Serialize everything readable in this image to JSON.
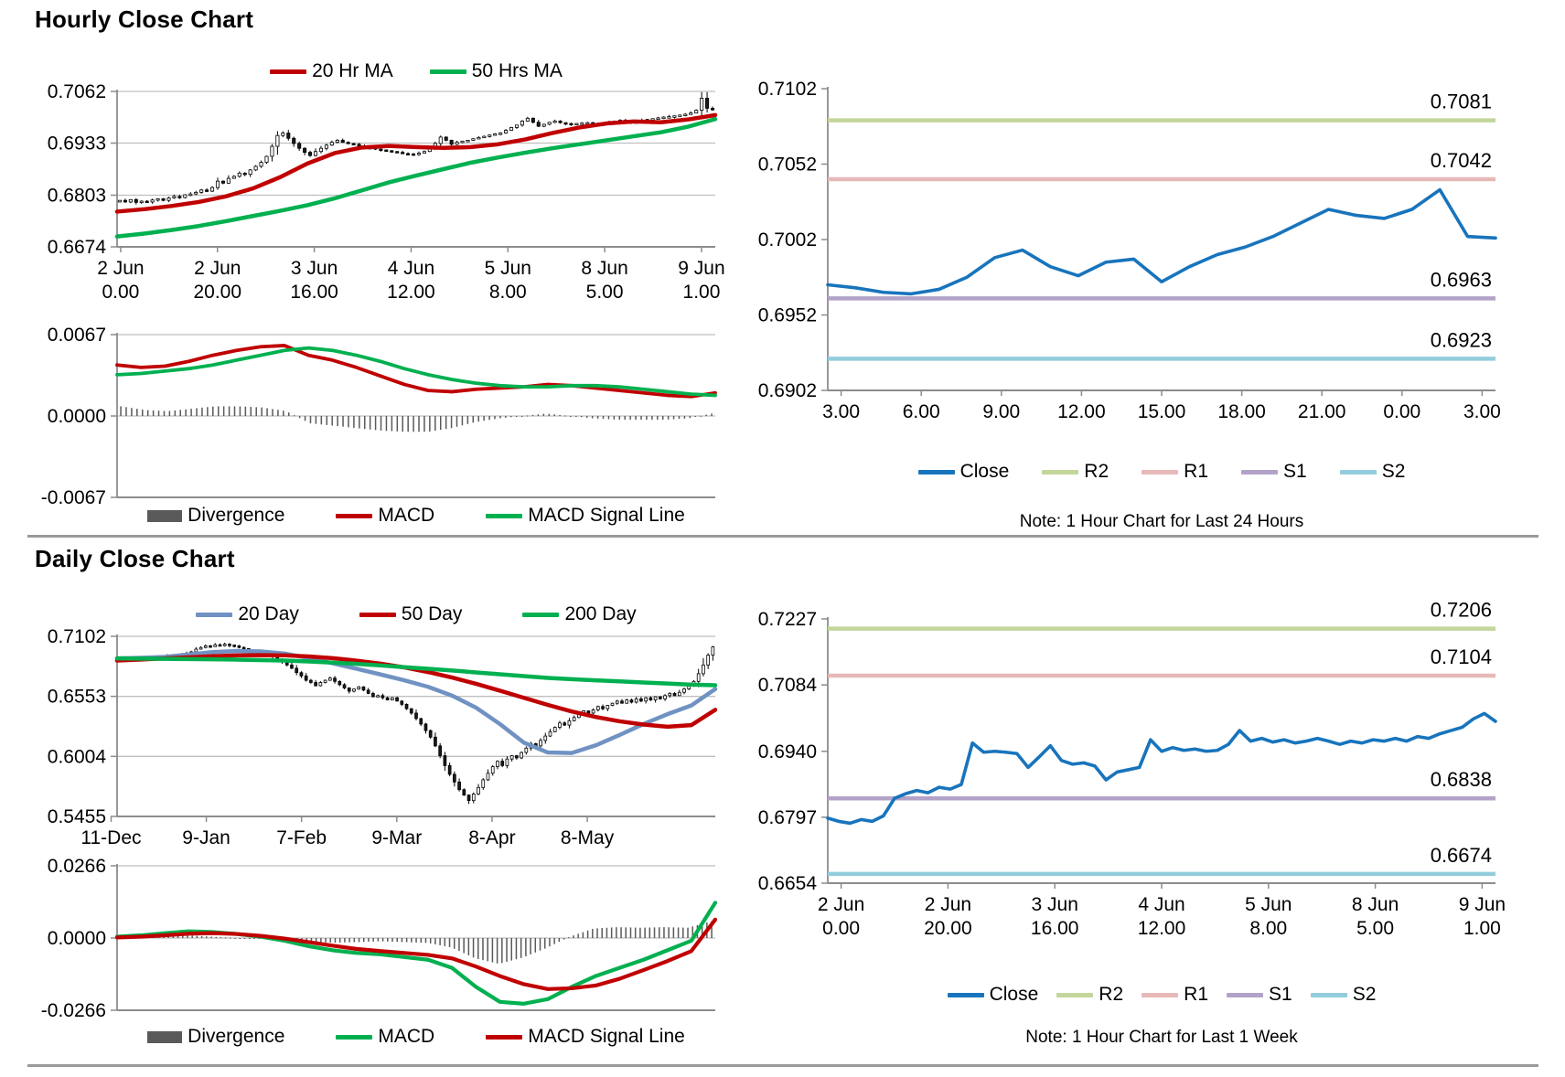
{
  "page": {
    "hourly_title": "Hourly Close Chart",
    "daily_title": "Daily Close Chart"
  },
  "colors": {
    "dark_red": "#C00000",
    "green": "#00B050",
    "ma20_blue": "#7092C3",
    "close_blue": "#1874BC",
    "r2_green": "#C3D69B",
    "r1_pink": "#E6B9B8",
    "s1_purple": "#B3A2C7",
    "s2_cyan": "#93CDDD",
    "divergence_gray": "#5A5A5A",
    "grid_gray": "#BFBFBF",
    "axis_gray": "#8C8C8C"
  },
  "chart_data": [
    {
      "id": "hourly_price",
      "type": "candlestick",
      "ylim": [
        0.6674,
        0.7062
      ],
      "y_ticks": [
        0.7062,
        0.6933,
        0.6803,
        0.6674
      ],
      "x_labels": [
        [
          "2 Jun",
          "0.00"
        ],
        [
          "2 Jun",
          "20.00"
        ],
        [
          "3 Jun",
          "16.00"
        ],
        [
          "4 Jun",
          "12.00"
        ],
        [
          "5 Jun",
          "8.00"
        ],
        [
          "8 Jun",
          "5.00"
        ],
        [
          "9 Jun",
          "1.00"
        ]
      ],
      "series": [
        {
          "name": "20 Hr MA",
          "type": "line",
          "color": "#C00000",
          "values": [
            0.6762,
            0.6768,
            0.6776,
            0.6786,
            0.68,
            0.682,
            0.6848,
            0.6882,
            0.6908,
            0.6922,
            0.6926,
            0.6923,
            0.6921,
            0.6923,
            0.693,
            0.6942,
            0.6958,
            0.6972,
            0.6982,
            0.6987,
            0.6985,
            0.6992,
            0.7003
          ]
        },
        {
          "name": "50 Hrs MA",
          "type": "line",
          "color": "#00B050",
          "values": [
            0.67,
            0.6707,
            0.6716,
            0.6726,
            0.6738,
            0.6751,
            0.6764,
            0.6778,
            0.6795,
            0.6815,
            0.6835,
            0.6852,
            0.6868,
            0.6884,
            0.6897,
            0.6909,
            0.692,
            0.693,
            0.694,
            0.695,
            0.696,
            0.6974,
            0.6993
          ]
        }
      ],
      "candles": {
        "name": "Hourly Close",
        "closes": [
          0.679,
          0.6786,
          0.6792,
          0.6785,
          0.6788,
          0.6786,
          0.6791,
          0.6794,
          0.679,
          0.6796,
          0.68,
          0.6797,
          0.6804,
          0.6806,
          0.681,
          0.6816,
          0.6813,
          0.6822,
          0.6838,
          0.6833,
          0.6845,
          0.685,
          0.6858,
          0.6855,
          0.6866,
          0.6875,
          0.6885,
          0.69,
          0.6925,
          0.6952,
          0.6958,
          0.6945,
          0.6932,
          0.692,
          0.691,
          0.6902,
          0.6912,
          0.692,
          0.6928,
          0.6935,
          0.694,
          0.6935,
          0.6932,
          0.693,
          0.6926,
          0.6922,
          0.6922,
          0.6918,
          0.6916,
          0.6914,
          0.6912,
          0.691,
          0.6907,
          0.6906,
          0.6905,
          0.6908,
          0.6912,
          0.6918,
          0.6932,
          0.6948,
          0.694,
          0.693,
          0.6935,
          0.6938,
          0.694,
          0.6944,
          0.6947,
          0.695,
          0.6953,
          0.6956,
          0.6958,
          0.6965,
          0.6972,
          0.6978,
          0.6988,
          0.6995,
          0.6985,
          0.6975,
          0.698,
          0.6985,
          0.6988,
          0.6984,
          0.6982,
          0.698,
          0.6982,
          0.6983,
          0.6984,
          0.6982,
          0.6981,
          0.698,
          0.6985,
          0.6988,
          0.699,
          0.6987,
          0.6985,
          0.6986,
          0.699,
          0.6992,
          0.6994,
          0.6996,
          0.6998,
          0.6999,
          0.7001,
          0.7003,
          0.7005,
          0.7008,
          0.7015,
          0.7045,
          0.702,
          0.7016
        ]
      }
    },
    {
      "id": "hourly_macd",
      "type": "macd",
      "ylim": [
        -0.0067,
        0.0067
      ],
      "y_ticks": [
        0.0067,
        0.0,
        -0.0067
      ],
      "series": [
        {
          "name": "Divergence",
          "type": "bars",
          "color": "#5A5A5A"
        },
        {
          "name": "MACD",
          "type": "line",
          "color": "#C00000",
          "values": [
            0.0042,
            0.004,
            0.0041,
            0.0045,
            0.005,
            0.0054,
            0.0057,
            0.0058,
            0.005,
            0.0046,
            0.004,
            0.0033,
            0.0026,
            0.0021,
            0.002,
            0.0022,
            0.0023,
            0.0024,
            0.0026,
            0.0025,
            0.0023,
            0.0021,
            0.0019,
            0.0017,
            0.0016,
            0.0019
          ]
        },
        {
          "name": "MACD Signal Line",
          "type": "line",
          "color": "#00B050",
          "values": [
            0.0034,
            0.0035,
            0.0037,
            0.0039,
            0.0042,
            0.0046,
            0.005,
            0.0054,
            0.0056,
            0.0054,
            0.005,
            0.0045,
            0.0039,
            0.0034,
            0.003,
            0.0027,
            0.0025,
            0.0024,
            0.0024,
            0.0025,
            0.0025,
            0.0024,
            0.0022,
            0.002,
            0.0018,
            0.0017
          ]
        }
      ]
    },
    {
      "id": "pivot_24h",
      "type": "line",
      "note": "Note: 1 Hour Chart for Last 24 Hours",
      "ylim": [
        0.6902,
        0.7102
      ],
      "y_ticks": [
        0.7102,
        0.7052,
        0.7002,
        0.6952,
        0.6902
      ],
      "x_labels": [
        "3.00",
        "6.00",
        "9.00",
        "12.00",
        "15.00",
        "18.00",
        "21.00",
        "0.00",
        "3.00"
      ],
      "close": {
        "name": "Close",
        "color": "#1874BC",
        "values": [
          0.6972,
          0.697,
          0.6967,
          0.6966,
          0.6969,
          0.6977,
          0.699,
          0.6995,
          0.6984,
          0.6978,
          0.6987,
          0.6989,
          0.6974,
          0.6984,
          0.6992,
          0.6997,
          0.7004,
          0.7013,
          0.7022,
          0.7018,
          0.7016,
          0.7022,
          0.7035,
          0.7004,
          0.7003
        ]
      },
      "pivots": [
        {
          "name": "R2",
          "value": 0.7081,
          "color": "#C3D69B"
        },
        {
          "name": "R1",
          "value": 0.7042,
          "color": "#E6B9B8"
        },
        {
          "name": "S1",
          "value": 0.6963,
          "color": "#B3A2C7"
        },
        {
          "name": "S2",
          "value": 0.6923,
          "color": "#93CDDD"
        }
      ]
    },
    {
      "id": "daily_price",
      "type": "candlestick",
      "ylim": [
        0.5455,
        0.7102
      ],
      "y_ticks": [
        0.7102,
        0.6553,
        0.6004,
        0.5455
      ],
      "x_labels": [
        "11-Dec",
        "9-Jan",
        "7-Feb",
        "9-Mar",
        "8-Apr",
        "8-May"
      ],
      "series": [
        {
          "name": "20 Day",
          "type": "line",
          "color": "#7092C3",
          "values": [
            0.69,
            0.6906,
            0.6914,
            0.6936,
            0.6958,
            0.6968,
            0.6964,
            0.6944,
            0.6904,
            0.6856,
            0.6806,
            0.6754,
            0.67,
            0.664,
            0.656,
            0.645,
            0.63,
            0.613,
            0.604,
            0.6035,
            0.6105,
            0.62,
            0.63,
            0.639,
            0.647,
            0.662
          ]
        },
        {
          "name": "50 Day",
          "type": "line",
          "color": "#C00000",
          "values": [
            0.688,
            0.689,
            0.69,
            0.691,
            0.692,
            0.6928,
            0.693,
            0.6928,
            0.6918,
            0.6902,
            0.688,
            0.6852,
            0.6818,
            0.6775,
            0.6725,
            0.6668,
            0.6605,
            0.654,
            0.6475,
            0.6415,
            0.6365,
            0.6325,
            0.6295,
            0.6275,
            0.629,
            0.643
          ]
        },
        {
          "name": "200 Day",
          "type": "line",
          "color": "#00B050",
          "values": [
            0.69,
            0.6898,
            0.6896,
            0.6894,
            0.6892,
            0.6889,
            0.6885,
            0.688,
            0.6872,
            0.6862,
            0.685,
            0.6836,
            0.682,
            0.6805,
            0.679,
            0.6772,
            0.6755,
            0.6738,
            0.6722,
            0.671,
            0.67,
            0.669,
            0.668,
            0.667,
            0.666,
            0.6655
          ]
        }
      ],
      "candles": {
        "name": "Daily Close",
        "closes": [
          0.69,
          0.6895,
          0.6905,
          0.6898,
          0.691,
          0.6902,
          0.6912,
          0.6905,
          0.6915,
          0.6908,
          0.692,
          0.6915,
          0.693,
          0.6922,
          0.6945,
          0.696,
          0.6985,
          0.7,
          0.7015,
          0.7008,
          0.7025,
          0.7018,
          0.703,
          0.7022,
          0.7015,
          0.7,
          0.699,
          0.6975,
          0.696,
          0.6945,
          0.6955,
          0.693,
          0.6915,
          0.6895,
          0.687,
          0.684,
          0.681,
          0.677,
          0.674,
          0.67,
          0.668,
          0.665,
          0.668,
          0.67,
          0.672,
          0.669,
          0.666,
          0.663,
          0.66,
          0.662,
          0.664,
          0.661,
          0.658,
          0.655,
          0.656,
          0.654,
          0.652,
          0.654,
          0.651,
          0.648,
          0.644,
          0.64,
          0.635,
          0.63,
          0.624,
          0.618,
          0.61,
          0.601,
          0.592,
          0.584,
          0.577,
          0.57,
          0.565,
          0.56,
          0.566,
          0.572,
          0.579,
          0.585,
          0.591,
          0.596,
          0.592,
          0.598,
          0.601,
          0.599,
          0.604,
          0.608,
          0.612,
          0.61,
          0.615,
          0.619,
          0.623,
          0.627,
          0.631,
          0.629,
          0.633,
          0.636,
          0.639,
          0.642,
          0.64,
          0.643,
          0.646,
          0.644,
          0.647,
          0.649,
          0.651,
          0.649,
          0.652,
          0.65,
          0.653,
          0.651,
          0.654,
          0.652,
          0.655,
          0.653,
          0.656,
          0.658,
          0.656,
          0.659,
          0.662,
          0.665,
          0.669,
          0.676,
          0.684,
          0.693,
          0.7005
        ]
      }
    },
    {
      "id": "daily_macd",
      "type": "macd",
      "ylim": [
        -0.0266,
        0.0266
      ],
      "y_ticks": [
        0.0266,
        0.0,
        -0.0266
      ],
      "series": [
        {
          "name": "Divergence",
          "type": "bars",
          "color": "#5A5A5A"
        },
        {
          "name": "MACD",
          "type": "line",
          "color": "#00B050",
          "values": [
            0.0005,
            0.001,
            0.0018,
            0.0025,
            0.0022,
            0.0015,
            0.0005,
            -0.001,
            -0.003,
            -0.0045,
            -0.0055,
            -0.006,
            -0.007,
            -0.008,
            -0.011,
            -0.018,
            -0.0235,
            -0.0242,
            -0.0225,
            -0.018,
            -0.014,
            -0.011,
            -0.008,
            -0.0045,
            -0.001,
            0.013
          ]
        },
        {
          "name": "MACD Signal Line",
          "type": "line",
          "color": "#C00000",
          "values": [
            0.0002,
            0.0005,
            0.001,
            0.0016,
            0.0018,
            0.0015,
            0.0008,
            -0.0002,
            -0.0015,
            -0.0028,
            -0.004,
            -0.0048,
            -0.0055,
            -0.0062,
            -0.0075,
            -0.0105,
            -0.014,
            -0.017,
            -0.0188,
            -0.0185,
            -0.0175,
            -0.015,
            -0.0118,
            -0.0085,
            -0.0048,
            0.0068
          ]
        }
      ]
    },
    {
      "id": "pivot_1week",
      "type": "line",
      "note": "Note: 1 Hour Chart for Last 1 Week",
      "ylim": [
        0.6654,
        0.7227
      ],
      "y_ticks": [
        0.7227,
        0.7084,
        0.694,
        0.6797,
        0.6654
      ],
      "x_labels": [
        [
          "2 Jun",
          "0.00"
        ],
        [
          "2 Jun",
          "20.00"
        ],
        [
          "3 Jun",
          "16.00"
        ],
        [
          "4 Jun",
          "12.00"
        ],
        [
          "5 Jun",
          "8.00"
        ],
        [
          "8 Jun",
          "5.00"
        ],
        [
          "9 Jun",
          "1.00"
        ]
      ],
      "close": {
        "name": "Close",
        "color": "#1874BC",
        "values": [
          0.6795,
          0.6788,
          0.6784,
          0.6792,
          0.6788,
          0.68,
          0.6838,
          0.6848,
          0.6855,
          0.685,
          0.6862,
          0.6858,
          0.6868,
          0.6958,
          0.6938,
          0.694,
          0.6938,
          0.6935,
          0.6905,
          0.6928,
          0.6952,
          0.692,
          0.6912,
          0.6915,
          0.6908,
          0.6878,
          0.6895,
          0.69,
          0.6905,
          0.6965,
          0.694,
          0.6948,
          0.6942,
          0.6945,
          0.694,
          0.6942,
          0.6955,
          0.6985,
          0.6962,
          0.6968,
          0.696,
          0.6965,
          0.6958,
          0.6962,
          0.6968,
          0.6962,
          0.6955,
          0.6962,
          0.6958,
          0.6965,
          0.6962,
          0.6968,
          0.6962,
          0.6972,
          0.6968,
          0.6978,
          0.6985,
          0.6992,
          0.701,
          0.7022,
          0.7005
        ]
      },
      "pivots": [
        {
          "name": "R2",
          "value": 0.7206,
          "color": "#C3D69B"
        },
        {
          "name": "R1",
          "value": 0.7104,
          "color": "#E6B9B8"
        },
        {
          "name": "S1",
          "value": 0.6838,
          "color": "#B3A2C7"
        },
        {
          "name": "S2",
          "value": 0.6674,
          "color": "#93CDDD"
        }
      ]
    }
  ]
}
